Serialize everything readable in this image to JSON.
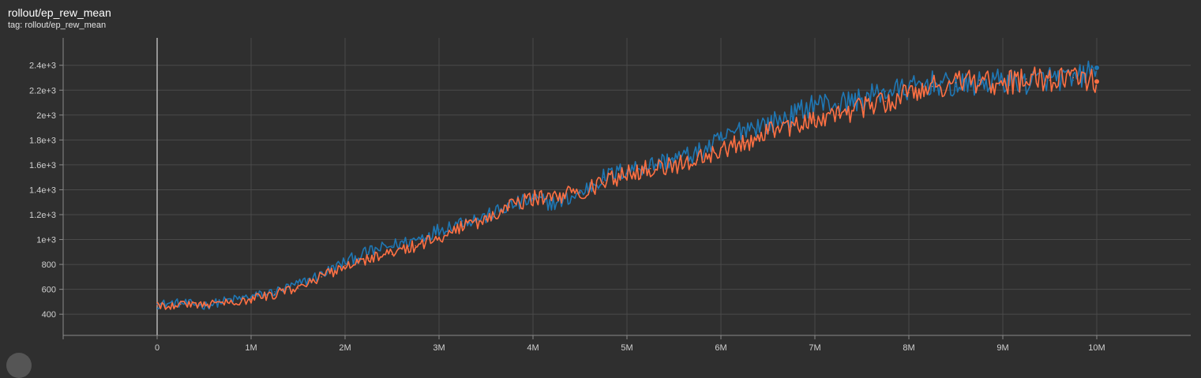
{
  "header": {
    "title": "rollout/ep_rew_mean",
    "subtitle": "tag: rollout/ep_rew_mean"
  },
  "chart_data": {
    "type": "line",
    "title": "rollout/ep_rew_mean",
    "xlabel": "",
    "ylabel": "",
    "xlim": [
      -1000000,
      11000000
    ],
    "ylim": [
      230,
      2620
    ],
    "grid": true,
    "x_ticks": [
      {
        "value": 0,
        "label": "0"
      },
      {
        "value": 1000000,
        "label": "1M"
      },
      {
        "value": 2000000,
        "label": "2M"
      },
      {
        "value": 3000000,
        "label": "3M"
      },
      {
        "value": 4000000,
        "label": "4M"
      },
      {
        "value": 5000000,
        "label": "5M"
      },
      {
        "value": 6000000,
        "label": "6M"
      },
      {
        "value": 7000000,
        "label": "7M"
      },
      {
        "value": 8000000,
        "label": "8M"
      },
      {
        "value": 9000000,
        "label": "9M"
      },
      {
        "value": 10000000,
        "label": "10M"
      }
    ],
    "y_ticks": [
      {
        "value": 400,
        "label": "400"
      },
      {
        "value": 600,
        "label": "600"
      },
      {
        "value": 800,
        "label": "800"
      },
      {
        "value": 1000,
        "label": "1e+3"
      },
      {
        "value": 1200,
        "label": "1.2e+3"
      },
      {
        "value": 1400,
        "label": "1.4e+3"
      },
      {
        "value": 1600,
        "label": "1.6e+3"
      },
      {
        "value": 1800,
        "label": "1.8e+3"
      },
      {
        "value": 2000,
        "label": "2e+3"
      },
      {
        "value": 2200,
        "label": "2.2e+3"
      },
      {
        "value": 2400,
        "label": "2.4e+3"
      }
    ],
    "series": [
      {
        "color": "#1f77b4",
        "x": [
          0,
          250000,
          500000,
          750000,
          1000000,
          1250000,
          1500000,
          1750000,
          2000000,
          2250000,
          2500000,
          2750000,
          3000000,
          3250000,
          3500000,
          3750000,
          4000000,
          4250000,
          4500000,
          4750000,
          5000000,
          5250000,
          5500000,
          5750000,
          6000000,
          6250000,
          6500000,
          6750000,
          7000000,
          7250000,
          7500000,
          7750000,
          8000000,
          8250000,
          8500000,
          8750000,
          9000000,
          9250000,
          9500000,
          9750000,
          10000000
        ],
        "values": [
          480,
          490,
          470,
          510,
          540,
          580,
          640,
          720,
          820,
          900,
          950,
          1000,
          1080,
          1150,
          1180,
          1270,
          1320,
          1290,
          1370,
          1500,
          1560,
          1600,
          1650,
          1690,
          1800,
          1900,
          1930,
          1990,
          2100,
          2090,
          2130,
          2190,
          2210,
          2260,
          2230,
          2250,
          2280,
          2260,
          2300,
          2280,
          2380
        ]
      },
      {
        "color": "#ff7043",
        "x": [
          0,
          250000,
          500000,
          750000,
          1000000,
          1250000,
          1500000,
          1750000,
          2000000,
          2250000,
          2500000,
          2750000,
          3000000,
          3250000,
          3500000,
          3750000,
          4000000,
          4250000,
          4500000,
          4750000,
          5000000,
          5250000,
          5500000,
          5750000,
          6000000,
          6250000,
          6500000,
          6750000,
          7000000,
          7250000,
          7500000,
          7750000,
          8000000,
          8250000,
          8500000,
          8750000,
          9000000,
          9250000,
          9500000,
          9750000,
          10000000
        ],
        "values": [
          470,
          480,
          480,
          500,
          520,
          560,
          610,
          700,
          790,
          850,
          880,
          950,
          1020,
          1100,
          1160,
          1260,
          1330,
          1350,
          1380,
          1460,
          1530,
          1570,
          1600,
          1640,
          1720,
          1780,
          1860,
          1910,
          1960,
          2000,
          2060,
          2110,
          2180,
          2230,
          2260,
          2280,
          2250,
          2290,
          2280,
          2300,
          2270
        ]
      }
    ]
  }
}
